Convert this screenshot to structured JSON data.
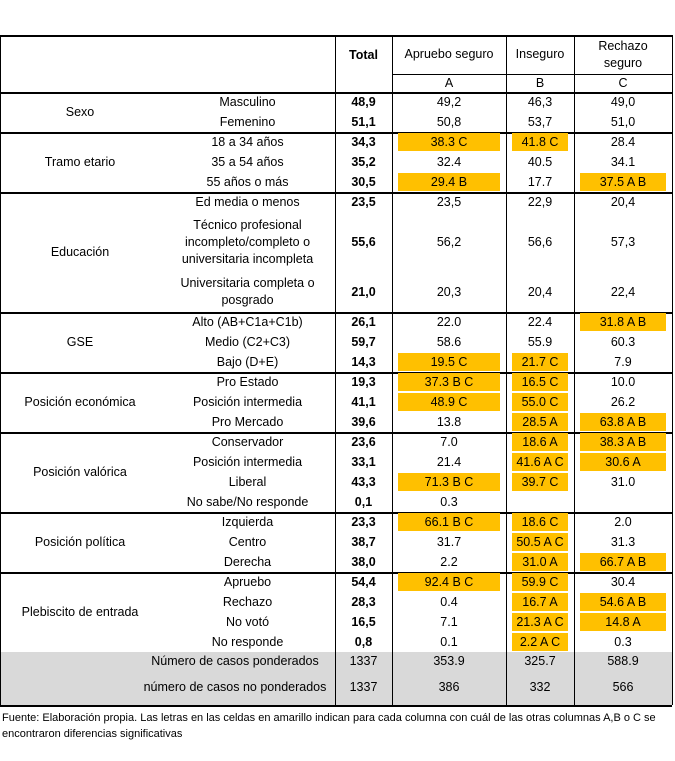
{
  "header": {
    "total": "Total",
    "col_a": "Apruebo seguro",
    "col_b": "Inseguro",
    "col_c": "Rechazo seguro",
    "letter_a": "A",
    "letter_b": "B",
    "letter_c": "C"
  },
  "groups": [
    {
      "label": "Sexo",
      "rows": [
        {
          "label": "Masculino",
          "total": "48,9",
          "a": "49,2",
          "b": "46,3",
          "c": "49,0",
          "hl": []
        },
        {
          "label": "Femenino",
          "total": "51,1",
          "a": "50,8",
          "b": "53,7",
          "c": "51,0",
          "hl": []
        }
      ]
    },
    {
      "label": "Tramo etario",
      "rows": [
        {
          "label": "18 a 34 años",
          "total": "34,3",
          "a": "38.3 C",
          "b": "41.8 C",
          "c": "28.4",
          "hl": [
            "a",
            "b"
          ]
        },
        {
          "label": "35 a 54 años",
          "total": "35,2",
          "a": "32.4",
          "b": "40.5",
          "c": "34.1",
          "hl": []
        },
        {
          "label": "55 años o más",
          "total": "30,5",
          "a": "29.4 B",
          "b": "17.7",
          "c": "37.5 A B",
          "hl": [
            "a",
            "c"
          ]
        }
      ]
    },
    {
      "label": "Educación",
      "rows": [
        {
          "label": "Ed media o menos",
          "total": "23,5",
          "a": "23,5",
          "b": "22,9",
          "c": "20,4",
          "hl": []
        },
        {
          "label": "Técnico profesional incompleto/completo o universitaria incompleta",
          "total": "55,6",
          "a": "56,2",
          "b": "56,6",
          "c": "57,3",
          "hl": []
        },
        {
          "label": "Universitaria completa o posgrado",
          "total": "21,0",
          "a": "20,3",
          "b": "20,4",
          "c": "22,4",
          "hl": []
        }
      ]
    },
    {
      "label": "GSE",
      "rows": [
        {
          "label": "Alto (AB+C1a+C1b)",
          "total": "26,1",
          "a": "22.0",
          "b": "22.4",
          "c": "31.8 A B",
          "hl": [
            "c"
          ]
        },
        {
          "label": "Medio (C2+C3)",
          "total": "59,7",
          "a": "58.6",
          "b": "55.9",
          "c": "60.3",
          "hl": []
        },
        {
          "label": "Bajo (D+E)",
          "total": "14,3",
          "a": "19.5 C",
          "b": "21.7 C",
          "c": "7.9",
          "hl": [
            "a",
            "b"
          ]
        }
      ]
    },
    {
      "label": "Posición económica",
      "rows": [
        {
          "label": "Pro Estado",
          "total": "19,3",
          "a": "37.3 B C",
          "b": "16.5 C",
          "c": "10.0",
          "hl": [
            "a",
            "b"
          ]
        },
        {
          "label": "Posición intermedia",
          "total": "41,1",
          "a": "48.9 C",
          "b": "55.0 C",
          "c": "26.2",
          "hl": [
            "a",
            "b"
          ]
        },
        {
          "label": "Pro Mercado",
          "total": "39,6",
          "a": "13.8",
          "b": "28.5 A",
          "c": "63.8 A B",
          "hl": [
            "b",
            "c"
          ]
        }
      ]
    },
    {
      "label": "Posición valórica",
      "rows": [
        {
          "label": "Conservador",
          "total": "23,6",
          "a": "7.0",
          "b": "18.6 A",
          "c": "38.3 A B",
          "hl": [
            "b",
            "c"
          ]
        },
        {
          "label": "Posición intermedia",
          "total": "33,1",
          "a": "21.4",
          "b": "41.6 A C",
          "c": "30.6 A",
          "hl": [
            "b",
            "c"
          ]
        },
        {
          "label": "Liberal",
          "total": "43,3",
          "a": "71.3 B C",
          "b": "39.7 C",
          "c": "31.0",
          "hl": [
            "a",
            "b"
          ]
        },
        {
          "label": "No sabe/No responde",
          "total": "0,1",
          "a": "0.3",
          "b": "",
          "c": "",
          "hl": []
        }
      ]
    },
    {
      "label": "Posición política",
      "rows": [
        {
          "label": "Izquierda",
          "total": "23,3",
          "a": "66.1 B C",
          "b": "18.6 C",
          "c": "2.0",
          "hl": [
            "a",
            "b"
          ]
        },
        {
          "label": "Centro",
          "total": "38,7",
          "a": "31.7",
          "b": "50.5 A C",
          "c": "31.3",
          "hl": [
            "b"
          ]
        },
        {
          "label": "Derecha",
          "total": "38,0",
          "a": "2.2",
          "b": "31.0 A",
          "c": "66.7 A B",
          "hl": [
            "b",
            "c"
          ]
        }
      ]
    },
    {
      "label": "Plebiscito de entrada",
      "rows": [
        {
          "label": "Apruebo",
          "total": "54,4",
          "a": "92.4 B C",
          "b": "59.9 C",
          "c": "30.4",
          "hl": [
            "a",
            "b"
          ]
        },
        {
          "label": "Rechazo",
          "total": "28,3",
          "a": "0.4",
          "b": "16.7 A",
          "c": "54.6 A B",
          "hl": [
            "b",
            "c"
          ]
        },
        {
          "label": "No votó",
          "total": "16,5",
          "a": "7.1",
          "b": "21.3 A C",
          "c": "14.8 A",
          "hl": [
            "b",
            "c"
          ]
        },
        {
          "label": "No responde",
          "total": "0,8",
          "a": "0.1",
          "b": "2.2 A C",
          "c": "0.3",
          "hl": [
            "b"
          ]
        }
      ]
    }
  ],
  "totals_rows": [
    {
      "label": "Número de casos ponderados",
      "total": "1337",
      "a": "353.9",
      "b": "325.7",
      "c": "588.9"
    },
    {
      "label": "número de casos no ponderados",
      "total": "1337",
      "a": "386",
      "b": "332",
      "c": "566"
    }
  ],
  "footer": "Fuente: Elaboración propia. Las letras en las celdas en amarillo indican para cada columna con cuál de las otras columnas A,B o C se encontraron diferencias significativas",
  "colors": {
    "highlight": "#ffc000",
    "gray": "#d9d9d9"
  }
}
